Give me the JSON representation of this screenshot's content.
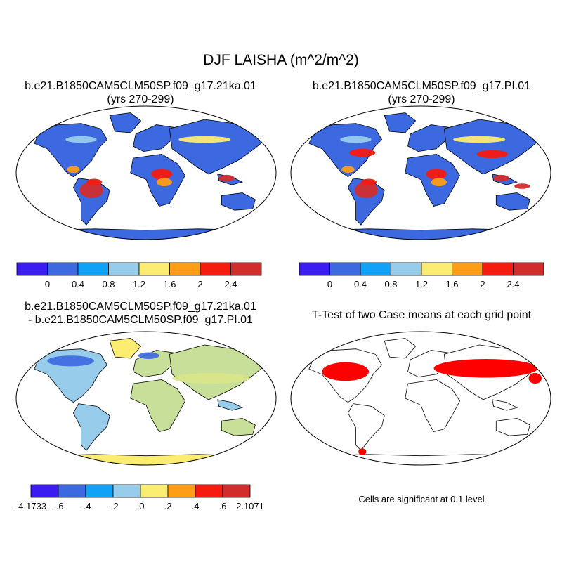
{
  "title": "DJF LAISHA (m^2/m^2)",
  "panels": [
    {
      "id": "case1",
      "title_line1": "b.e21.B1850CAM5CLM50SP.f09_g17.21ka.01",
      "title_line2": "(yrs 270-299)",
      "colorbar": {
        "colors": [
          "#3b1cf2",
          "#3c68e0",
          "#0fa2f7",
          "#98cceb",
          "#fbec72",
          "#fd9e16",
          "#f71a0f",
          "#d22d2d"
        ],
        "labels": [
          "0",
          "0.4",
          "0.8",
          "1.2",
          "1.6",
          "2",
          "2.4"
        ]
      }
    },
    {
      "id": "case2",
      "title_line1": "b.e21.B1850CAM5CLM50SP.f09_g17.PI.01",
      "title_line2": "(yrs 270-299)",
      "colorbar": {
        "colors": [
          "#3b1cf2",
          "#3c68e0",
          "#0fa2f7",
          "#98cceb",
          "#fbec72",
          "#fd9e16",
          "#f71a0f",
          "#d22d2d"
        ],
        "labels": [
          "0",
          "0.4",
          "0.8",
          "1.2",
          "1.6",
          "2",
          "2.4"
        ]
      }
    },
    {
      "id": "diff",
      "title_line1": "b.e21.B1850CAM5CLM50SP.f09_g17.21ka.01",
      "title_line2": "- b.e21.B1850CAM5CLM50SP.f09_g17.PI.01",
      "colorbar": {
        "colors": [
          "#3b1cf2",
          "#3c68e0",
          "#0fa2f7",
          "#98cceb",
          "#fbec72",
          "#fd9e16",
          "#f71a0f",
          "#d22d2d"
        ],
        "labels": [
          "-4.1733",
          "-.6",
          "-.4",
          "-.2",
          ".0",
          ".2",
          ".4",
          ".6",
          "2.1071"
        ]
      }
    },
    {
      "id": "ttest",
      "title_line1": "T-Test of two Case means at each grid point",
      "note": "Cells are significant at 0.1 level"
    }
  ]
}
